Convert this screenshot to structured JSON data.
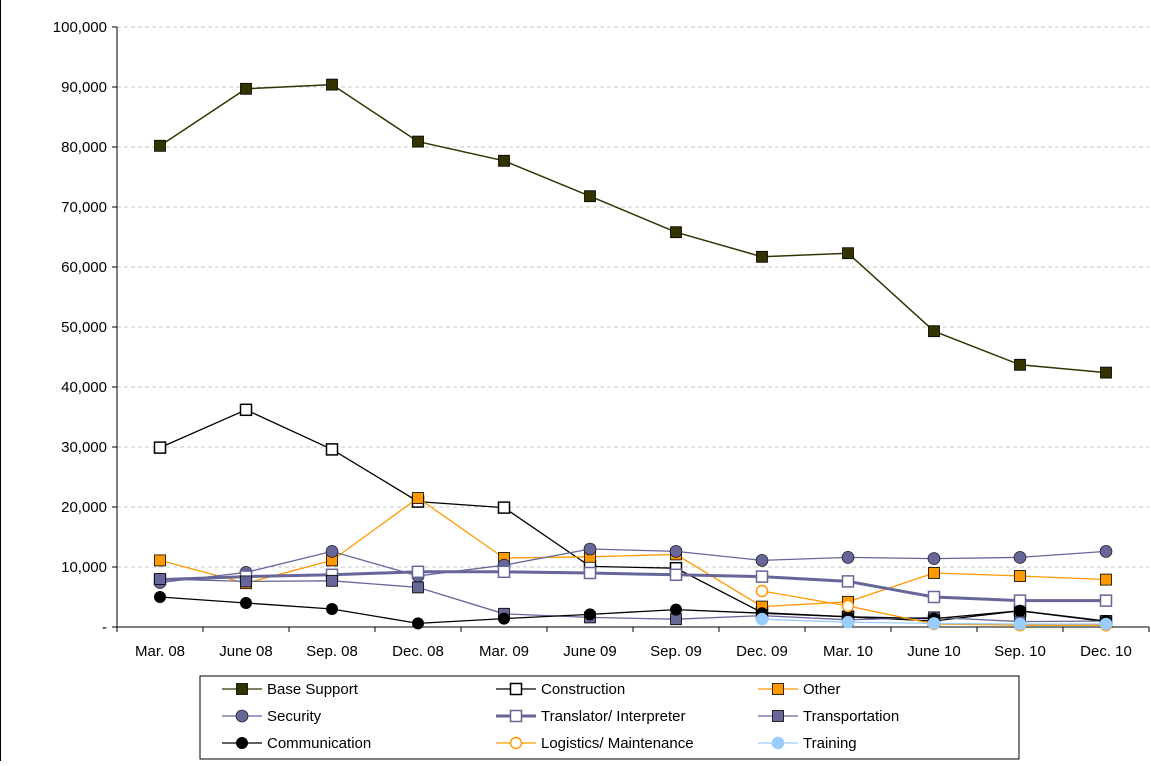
{
  "chart_data": {
    "type": "line",
    "title": "",
    "xlabel": "",
    "ylabel": "",
    "ylim": [
      0,
      100000
    ],
    "yticks": [
      0,
      10000,
      20000,
      30000,
      40000,
      50000,
      60000,
      70000,
      80000,
      90000,
      100000
    ],
    "ytick_labels": [
      "-",
      "10,000",
      "20,000",
      "30,000",
      "40,000",
      "50,000",
      "60,000",
      "70,000",
      "80,000",
      "90,000",
      "100,000"
    ],
    "grid": "horizontal dashed",
    "legend_position": "bottom",
    "categories": [
      "Mar. 08",
      "June 08",
      "Sep. 08",
      "Dec. 08",
      "Mar. 09",
      "June 09",
      "Sep. 09",
      "Dec. 09",
      "Mar. 10",
      "June 10",
      "Sep. 10",
      "Dec. 10"
    ],
    "series": [
      {
        "name": "Base Support",
        "color": "#333300",
        "marker": "square-filled",
        "values": [
          80200,
          89700,
          90400,
          80900,
          77700,
          71800,
          65800,
          61700,
          62300,
          49300,
          43700,
          42400
        ]
      },
      {
        "name": "Construction",
        "color": "#000000",
        "marker": "square-open",
        "values": [
          29900,
          36200,
          29600,
          20900,
          19900,
          10100,
          9800,
          2400,
          1700,
          1000,
          2700,
          900
        ]
      },
      {
        "name": "Other",
        "color": "#ff9900",
        "marker": "square-filled",
        "values": [
          11100,
          7300,
          11100,
          21500,
          11500,
          11700,
          12100,
          3400,
          4200,
          9000,
          8500,
          7900
        ]
      },
      {
        "name": "Security",
        "color": "#666699",
        "marker": "circle-filled",
        "values": [
          7400,
          9100,
          12600,
          8500,
          10300,
          13000,
          12600,
          11100,
          11600,
          11400,
          11600,
          12600
        ]
      },
      {
        "name": "Translator/ Interpreter",
        "color": "#666699",
        "marker": "square-open",
        "values": [
          7900,
          8400,
          8700,
          9200,
          9200,
          9000,
          8700,
          8400,
          7600,
          5000,
          4400,
          4400
        ]
      },
      {
        "name": "Transportation",
        "color": "#666699",
        "marker": "square-filled",
        "values": [
          8000,
          7600,
          7700,
          6600,
          2200,
          1600,
          1300,
          1900,
          1200,
          1600,
          900,
          1000
        ]
      },
      {
        "name": "Communication",
        "color": "#000000",
        "marker": "circle-filled",
        "values": [
          5000,
          4000,
          3000,
          600,
          1400,
          2100,
          2900,
          2300,
          1700,
          1400,
          2700,
          1000
        ]
      },
      {
        "name": "Logistics/ Maintenance",
        "color": "#ff9900",
        "marker": "circle-open",
        "values": [
          null,
          null,
          null,
          null,
          null,
          null,
          null,
          6000,
          3500,
          500,
          300,
          300
        ]
      },
      {
        "name": "Training",
        "color": "#99ccff",
        "marker": "circle-filled",
        "values": [
          null,
          null,
          null,
          null,
          null,
          null,
          null,
          1300,
          800,
          600,
          500,
          500
        ]
      }
    ]
  }
}
